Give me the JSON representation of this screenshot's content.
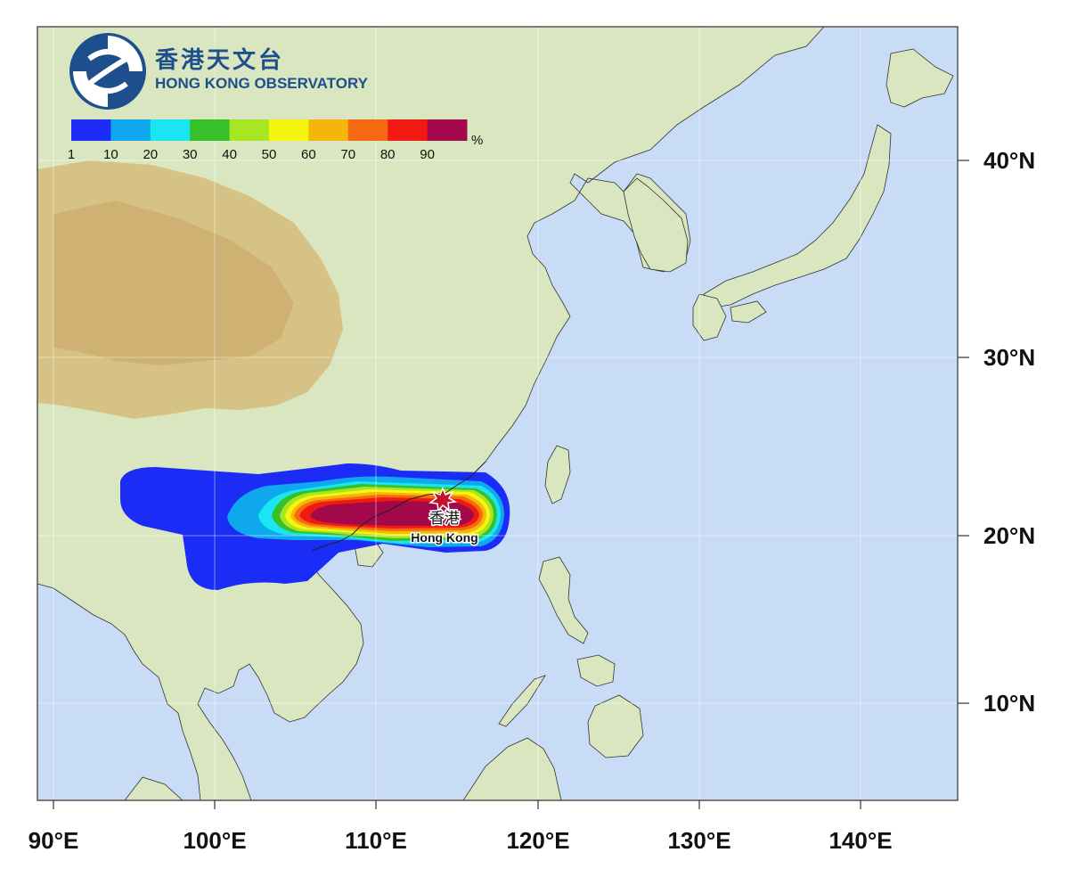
{
  "logo": {
    "name_zh": "香港天文台",
    "name_en": "HONG KONG OBSERVATORY",
    "color": "#1d4f8c"
  },
  "legend": {
    "unit": "%",
    "ticks": [
      "1",
      "10",
      "20",
      "30",
      "40",
      "50",
      "60",
      "70",
      "80",
      "90"
    ],
    "colors": [
      "#1a2cf5",
      "#0fa8ee",
      "#19e6f0",
      "#36c02a",
      "#a7e623",
      "#f6f510",
      "#f5b50a",
      "#f56a10",
      "#f01a10",
      "#a3094a"
    ]
  },
  "axes": {
    "longitude_labels": [
      "90°E",
      "100°E",
      "110°E",
      "120°E",
      "130°E",
      "140°E"
    ],
    "latitude_labels": [
      "40°N",
      "30°N",
      "20°N",
      "10°N"
    ]
  },
  "marker": {
    "label_zh": "香港",
    "label_en": "Hong Kong",
    "icon": "star-burst-icon",
    "color": "#c2132b"
  },
  "colors": {
    "sea": "#c9dcf6",
    "land": "#d9e6bf",
    "highland": "#d6be7e",
    "frame": "#555555"
  }
}
